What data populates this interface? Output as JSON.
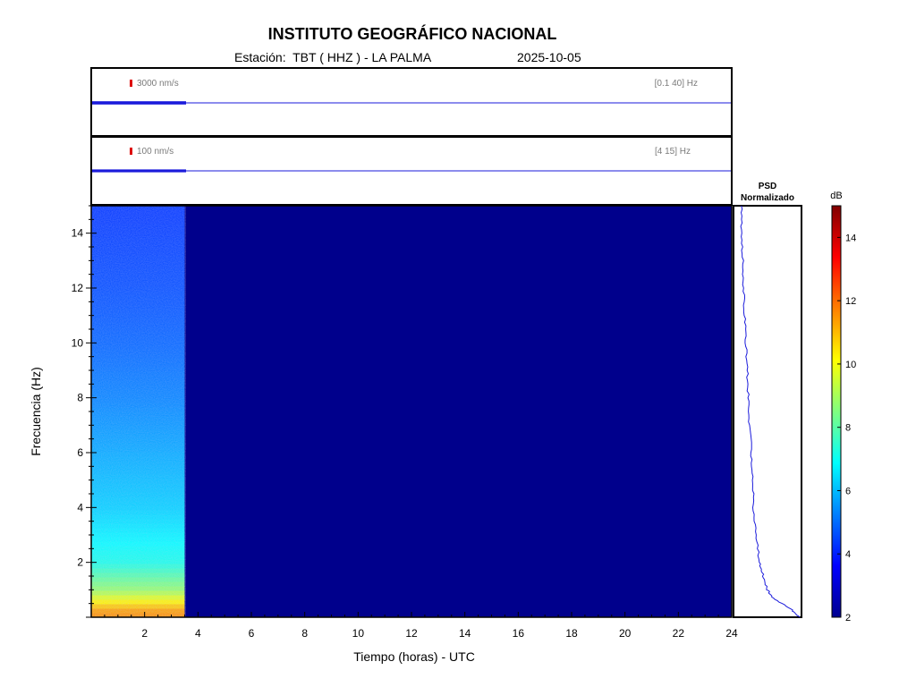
{
  "header": {
    "title": "INSTITUTO GEOGRÁFICO NACIONAL",
    "station": "Estación:  TBT ( HHZ ) - LA PALMA",
    "date": "2025-10-05"
  },
  "traces": [
    {
      "scale_label": "3000 nm/s",
      "band_label": "[0.1 40] Hz",
      "data_end_hour": 3.5
    },
    {
      "scale_label": "100 nm/s",
      "band_label": "[4 15] Hz",
      "data_end_hour": 3.5
    }
  ],
  "psd_panel": {
    "title_line1": "PSD",
    "title_line2": "Normalizado"
  },
  "colorbar": {
    "unit": "dB",
    "min": 2,
    "max": 15,
    "ticks": [
      2,
      4,
      6,
      8,
      10,
      12,
      14
    ]
  },
  "colors": {
    "trace": "#1a1adb",
    "scale_marker": "#dd0000",
    "background_dark": "#00008c"
  },
  "chart_data": {
    "type": "heatmap",
    "xlabel": "Tiempo (horas) - UTC",
    "ylabel": "Frecuencia  (Hz)",
    "xlim": [
      0,
      24
    ],
    "ylim": [
      0,
      15
    ],
    "x_ticks": [
      2,
      4,
      6,
      8,
      10,
      12,
      14,
      16,
      18,
      20,
      22,
      24
    ],
    "y_ticks": [
      2,
      4,
      6,
      8,
      10,
      12,
      14
    ],
    "data_end_hour": 3.5,
    "spectrogram_db_profile": [
      {
        "freq_hz": 0.2,
        "db": 11.5
      },
      {
        "freq_hz": 0.5,
        "db": 10.5
      },
      {
        "freq_hz": 1.0,
        "db": 8.8
      },
      {
        "freq_hz": 2.0,
        "db": 7.2
      },
      {
        "freq_hz": 4.0,
        "db": 6.3
      },
      {
        "freq_hz": 6.0,
        "db": 5.8
      },
      {
        "freq_hz": 8.0,
        "db": 5.3
      },
      {
        "freq_hz": 10.0,
        "db": 4.9
      },
      {
        "freq_hz": 12.0,
        "db": 4.6
      },
      {
        "freq_hz": 15.0,
        "db": 4.3
      }
    ],
    "no_data_db": 2,
    "psd_normalized": [
      {
        "freq_hz": 0.0,
        "value": 1.0
      },
      {
        "freq_hz": 0.3,
        "value": 0.85
      },
      {
        "freq_hz": 0.7,
        "value": 0.55
      },
      {
        "freq_hz": 1.0,
        "value": 0.45
      },
      {
        "freq_hz": 1.5,
        "value": 0.38
      },
      {
        "freq_hz": 2.0,
        "value": 0.32
      },
      {
        "freq_hz": 3.0,
        "value": 0.26
      },
      {
        "freq_hz": 4.0,
        "value": 0.22
      },
      {
        "freq_hz": 5.0,
        "value": 0.2
      },
      {
        "freq_hz": 6.0,
        "value": 0.18
      },
      {
        "freq_hz": 7.0,
        "value": 0.15
      },
      {
        "freq_hz": 8.0,
        "value": 0.13
      },
      {
        "freq_hz": 9.0,
        "value": 0.11
      },
      {
        "freq_hz": 10.0,
        "value": 0.09
      },
      {
        "freq_hz": 11.0,
        "value": 0.07
      },
      {
        "freq_hz": 12.0,
        "value": 0.05
      },
      {
        "freq_hz": 13.0,
        "value": 0.04
      },
      {
        "freq_hz": 14.0,
        "value": 0.02
      },
      {
        "freq_hz": 15.0,
        "value": 0.01
      }
    ]
  }
}
